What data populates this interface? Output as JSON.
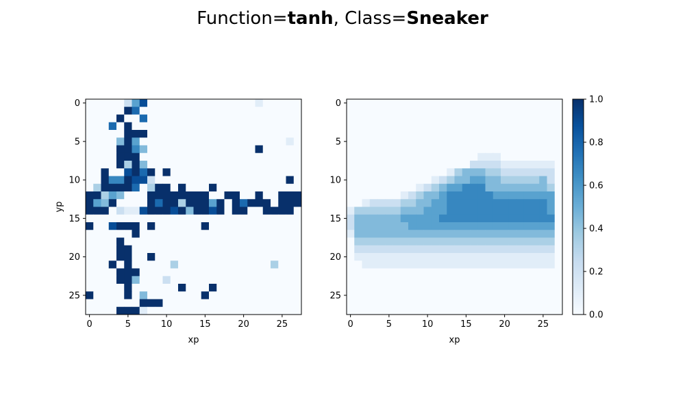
{
  "figure": {
    "title_prefix": "Function=",
    "function": "tanh",
    "title_sep": ", Class=",
    "class_name": "Sneaker"
  },
  "colormap": {
    "name": "Blues",
    "low": "#f7fbff",
    "high": "#08306b"
  },
  "chart_data": [
    {
      "type": "heatmap",
      "xlabel": "xp",
      "ylabel": "yp",
      "x_ticks": [
        0,
        5,
        10,
        15,
        20,
        25
      ],
      "y_ticks": [
        0,
        5,
        10,
        15,
        20,
        25
      ],
      "shape": [
        28,
        28
      ],
      "vlim": [
        0,
        1
      ],
      "matrix": [
        "0000025800000000000000100000",
        "0000097000000000000000000000",
        "0000900700000000000000000000",
        "0007090000000000000000000000",
        "0000099900000000000000000000",
        "0000495000000000000000000010",
        "0000996400000000000000900000",
        "0000999000000000000000000000",
        "0000939400000000000000000000",
        "0090089790900000000000000000",
        "0096698820000000000000000090",
        "0399997039909000900000000000",
        "9935400099999999009900900999",
        "9549000097993999590979990999",
        "9990211899989499890990099990",
        "0000000000000000000000000000",
        "9008999090000009000000000000",
        "0000009000000000000000000000",
        "0000900000000000000000000000",
        "0000990000000000000000000000",
        "0000990090000000000000000000",
        "0009090000030000000000003000",
        "0000999000000000000000000000",
        "0000994000200000000000000000",
        "0000090000009000900000000000",
        "9000090400000009000000000000",
        "0000000999000000000000000000",
        "0000999100000000000000000000"
      ]
    },
    {
      "type": "heatmap",
      "xlabel": "xp",
      "ylabel": "",
      "x_ticks": [
        0,
        5,
        10,
        15,
        20,
        25
      ],
      "y_ticks": [
        0,
        5,
        10,
        15,
        20,
        25
      ],
      "shape": [
        28,
        28
      ],
      "vlim": [
        0,
        1
      ],
      "matrix": [
        "0000000000000000000000000000",
        "0000000000000000000000000000",
        "0000000000000000000000000000",
        "0000000000000000000000000000",
        "0000000000000000000000000000",
        "0000000000000000000000000000",
        "0000000000000000000000000000",
        "0000000000000000011100000000",
        "0000000000000000222211111110",
        "0000000000000134443322222220",
        "0000000000012344554433333420",
        "0000000001234556664444444430",
        "0000000123445666666555555550",
        "0012222334455666666666666650",
        "1333333444555666666666666650",
        "2444444555556666666666666660",
        "2444444455555555555555555550",
        "1444444444444444444444444440",
        "0333333333333333333333333330",
        "0222222222222222222222222220",
        "0111111111111111111111111110",
        "0011111111111111111111111110",
        "0000000000000000000000000000",
        "0000000000000000000000000000",
        "0000000000000000000000000000",
        "0000000000000000000000000000",
        "0000000000000000000000000000",
        "0000000000000000000000000000"
      ]
    }
  ],
  "colorbar": {
    "ticks": [
      "0.0",
      "0.2",
      "0.4",
      "0.6",
      "0.8",
      "1.0"
    ]
  }
}
